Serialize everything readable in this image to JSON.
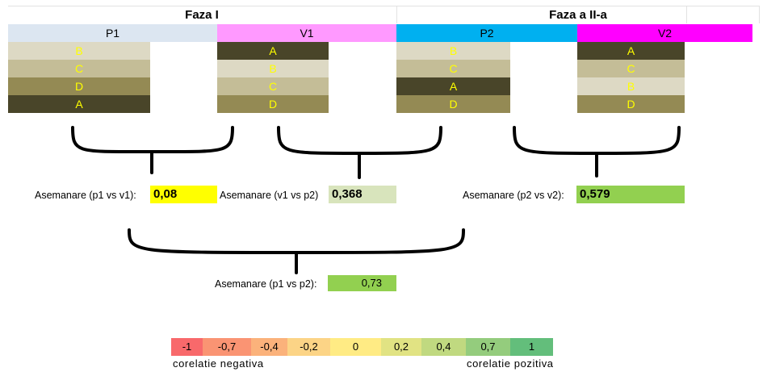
{
  "phases": [
    {
      "title": "Faza I",
      "columns": [
        {
          "name": "P1",
          "header_color": "#dce6f1",
          "cells": [
            "B",
            "C",
            "D",
            "A"
          ]
        },
        {
          "name": "V1",
          "header_color": "#ff99ff",
          "cells": [
            "A",
            "B",
            "C",
            "D"
          ]
        }
      ]
    },
    {
      "title": "Faza a II-a",
      "columns": [
        {
          "name": "P2",
          "header_color": "#00b0f0",
          "cells": [
            "B",
            "C",
            "A",
            "D"
          ]
        },
        {
          "name": "V2",
          "header_color": "#ff00ff",
          "cells": [
            "A",
            "C",
            "B",
            "D"
          ]
        }
      ]
    }
  ],
  "letter_colors": {
    "A": "#494529",
    "B": "#ddd9c4",
    "C": "#c4bd97",
    "D": "#948a54"
  },
  "similarities": [
    {
      "label": "Asemanare (p1 vs v1):",
      "value": "0,08",
      "color": "#ffff00"
    },
    {
      "label": "Asemanare (v1 vs p2)",
      "value": "0,368",
      "color": "#d8e4bc"
    },
    {
      "label": "Asemanare (p2 vs v2):",
      "value": "0,579",
      "color": "#92d050"
    },
    {
      "label": "Asemanare (p1 vs p2):",
      "value": "0,73",
      "color": "#92d050"
    }
  ],
  "legend": {
    "values": [
      "-1",
      "-0,7",
      "-0,4",
      "-0,2",
      "0",
      "0,2",
      "0,4",
      "0,7",
      "1"
    ],
    "colors": [
      "#f8696b",
      "#fa9473",
      "#fbb27b",
      "#fcd486",
      "#ffeb84",
      "#e1e383",
      "#c0d980",
      "#94cc7d",
      "#63be7b"
    ],
    "negative_caption": "corelatie negativa",
    "positive_caption": "corelatie pozitiva"
  }
}
